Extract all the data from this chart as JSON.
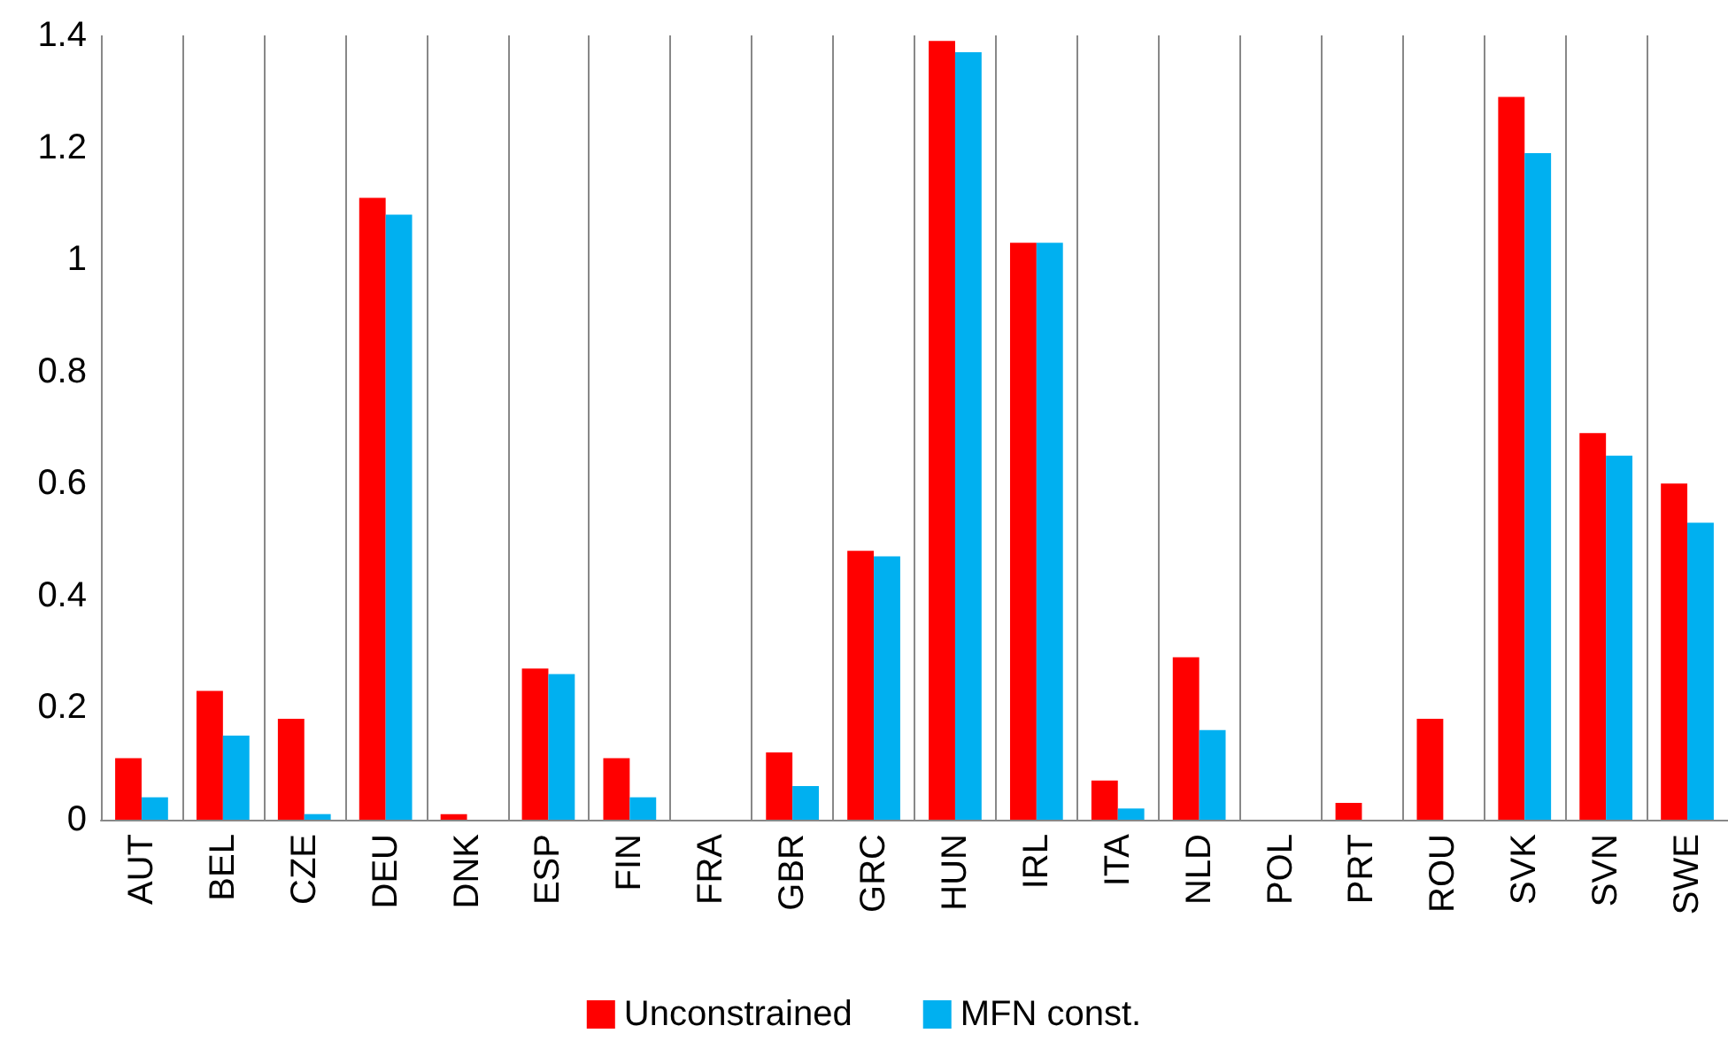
{
  "chart_data": {
    "type": "bar",
    "categories": [
      "AUT",
      "BEL",
      "CZE",
      "DEU",
      "DNK",
      "ESP",
      "FIN",
      "FRA",
      "GBR",
      "GRC",
      "HUN",
      "IRL",
      "ITA",
      "NLD",
      "POL",
      "PRT",
      "ROU",
      "SVK",
      "SVN",
      "SWE"
    ],
    "series": [
      {
        "name": "Unconstrained",
        "color": "#ff0000",
        "values": [
          0.11,
          0.23,
          0.18,
          1.11,
          0.01,
          0.27,
          0.11,
          0,
          0.12,
          0.48,
          1.39,
          1.03,
          0.07,
          0.29,
          0,
          0.03,
          0.18,
          1.29,
          0.69,
          0.6
        ]
      },
      {
        "name": "MFN const.",
        "color": "#00b0f0",
        "values": [
          0.04,
          0.15,
          0.01,
          1.08,
          0,
          0.26,
          0.04,
          0,
          0.06,
          0.47,
          1.37,
          1.03,
          0.02,
          0.16,
          0,
          0,
          0,
          1.19,
          0.65,
          0.53
        ]
      }
    ],
    "ylim": [
      0,
      1.4
    ],
    "yticks": [
      0,
      0.2,
      0.4,
      0.6,
      0.8,
      1,
      1.2,
      1.4
    ],
    "grid": "x",
    "legend": "bottom"
  }
}
